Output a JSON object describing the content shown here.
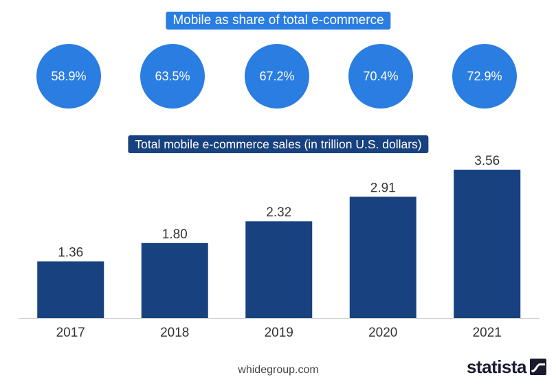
{
  "colors": {
    "share_accent": "#2a7de1",
    "bar": "#17427f",
    "text": "#333333"
  },
  "share_banner": "Mobile as share of total e-commerce",
  "sales_banner": "Total mobile e-commerce sales (in trillion U.S. dollars)",
  "share_values": [
    "58.9%",
    "63.5%",
    "67.2%",
    "70.4%",
    "72.9%"
  ],
  "source": "whidegroup.com",
  "logo": {
    "text": "statista",
    "icon": "statista-wave-icon"
  },
  "chart_data": {
    "type": "bar",
    "title": "Total mobile e-commerce sales (in trillion U.S. dollars)",
    "categories": [
      "2017",
      "2018",
      "2019",
      "2020",
      "2021"
    ],
    "values": [
      1.36,
      1.8,
      2.32,
      2.91,
      3.56
    ],
    "value_labels": [
      "1.36",
      "1.80",
      "2.32",
      "2.91",
      "3.56"
    ],
    "share_of_total_ecommerce": [
      58.9,
      63.5,
      67.2,
      70.4,
      72.9
    ],
    "ylim": [
      0,
      3.56
    ],
    "grid": false,
    "legend": "none"
  }
}
